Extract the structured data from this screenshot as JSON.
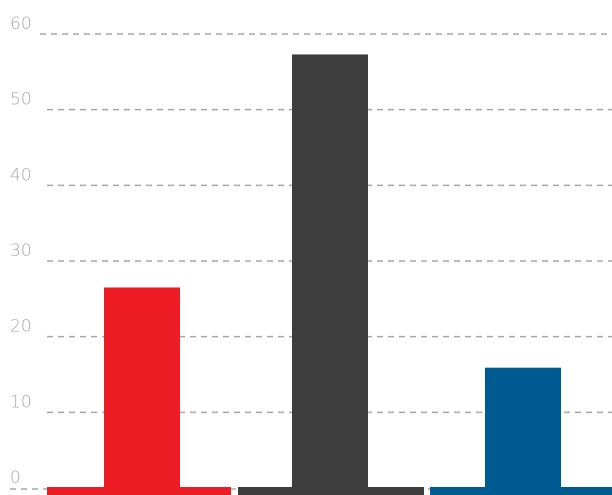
{
  "chart_data": {
    "type": "bar",
    "categories": [
      "",
      "",
      ""
    ],
    "values": [
      26.5,
      57.3,
      15.9
    ],
    "colors": [
      "#ee1c25",
      "#3d3d3d",
      "#005a92"
    ],
    "title": "",
    "xlabel": "",
    "ylabel": "",
    "ylim": [
      0,
      60
    ],
    "yticks": [
      0,
      10,
      20,
      30,
      40,
      50,
      60
    ],
    "ytick_labels": [
      "0",
      "10",
      "20",
      "30",
      "40",
      "50",
      "60"
    ],
    "grid": true,
    "grid_style": "dashed",
    "legend": "none"
  }
}
